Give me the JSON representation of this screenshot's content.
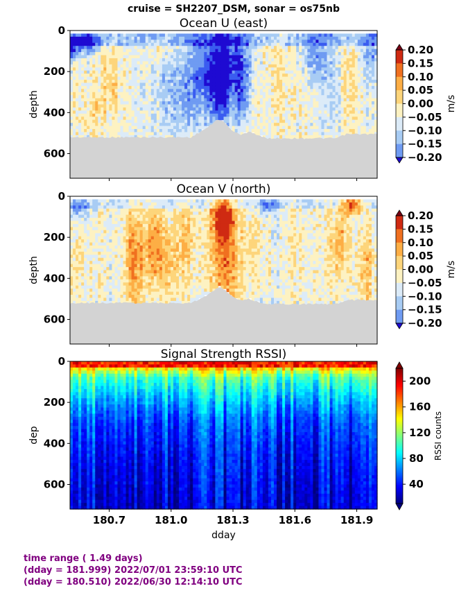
{
  "figure_title": "cruise = SH2207_DSM,  sonar = os75nb",
  "chart_data": [
    {
      "type": "heatmap",
      "title": "Ocean U (east)",
      "ylabel": "depth",
      "xlim": [
        180.51,
        181.999
      ],
      "ylim": [
        720,
        0
      ],
      "y_ticks": [
        0,
        200,
        400,
        600
      ],
      "x_ticks": [
        180.7,
        181.0,
        181.3,
        181.6,
        181.9
      ],
      "show_x_ticklabels": false,
      "colorbar": {
        "label": "m/s",
        "levels": [
          -0.2,
          -0.15,
          -0.1,
          -0.05,
          0.0,
          0.05,
          0.1,
          0.15,
          0.2
        ],
        "tick_labels": [
          "0.20",
          "0.15",
          "0.10",
          "0.05",
          "0.00",
          "−0.05",
          "−0.10",
          "−0.15",
          "−0.20"
        ],
        "colors": [
          "#1e0ad2",
          "#3a5cf0",
          "#6f9bf2",
          "#a8ccf4",
          "#dcebf8",
          "#fdf2c2",
          "#fdd57b",
          "#fdae45",
          "#f07020",
          "#cf2a12",
          "#780014"
        ],
        "extend": "both"
      },
      "mask_color": "#d3d3d3",
      "bottom_depth": [
        [
          180.51,
          520
        ],
        [
          181.1,
          520
        ],
        [
          181.13,
          500
        ],
        [
          181.18,
          470
        ],
        [
          181.23,
          430
        ],
        [
          181.26,
          450
        ],
        [
          181.3,
          490
        ],
        [
          181.34,
          510
        ],
        [
          181.38,
          490
        ],
        [
          181.42,
          510
        ],
        [
          181.46,
          525
        ],
        [
          181.8,
          525
        ],
        [
          181.85,
          505
        ],
        [
          182.0,
          505
        ]
      ],
      "features": [
        {
          "dday": 180.52,
          "depth": 80,
          "value": -0.22,
          "width": 0.04,
          "height": 60
        },
        {
          "dday": 180.6,
          "depth": 60,
          "value": -0.19,
          "width": 0.05,
          "height": 50
        },
        {
          "dday": 180.7,
          "depth": 250,
          "value": 0.06,
          "width": 0.06,
          "height": 180
        },
        {
          "dday": 180.62,
          "depth": 400,
          "value": 0.05,
          "width": 0.05,
          "height": 120
        },
        {
          "dday": 180.95,
          "depth": 80,
          "value": 0.05,
          "width": 0.05,
          "height": 60
        },
        {
          "dday": 181.05,
          "depth": 300,
          "value": -0.1,
          "width": 0.12,
          "height": 220
        },
        {
          "dday": 181.18,
          "depth": 180,
          "value": -0.14,
          "width": 0.08,
          "height": 200
        },
        {
          "dday": 181.24,
          "depth": 250,
          "value": -0.22,
          "width": 0.05,
          "height": 240
        },
        {
          "dday": 181.33,
          "depth": 150,
          "value": -0.19,
          "width": 0.06,
          "height": 140
        },
        {
          "dday": 181.34,
          "depth": 350,
          "value": -0.14,
          "width": 0.04,
          "height": 120
        },
        {
          "dday": 181.52,
          "depth": 200,
          "value": 0.04,
          "width": 0.07,
          "height": 240
        },
        {
          "dday": 181.7,
          "depth": 120,
          "value": -0.11,
          "width": 0.08,
          "height": 120
        },
        {
          "dday": 181.78,
          "depth": 300,
          "value": -0.05,
          "width": 0.07,
          "height": 200
        },
        {
          "dday": 181.86,
          "depth": 260,
          "value": 0.06,
          "width": 0.05,
          "height": 200
        },
        {
          "dday": 181.97,
          "depth": 120,
          "value": -0.1,
          "width": 0.05,
          "height": 130
        }
      ],
      "surface_band": {
        "depth_max": 70,
        "value": -0.13
      }
    },
    {
      "type": "heatmap",
      "title": "Ocean V (north)",
      "ylabel": "depth",
      "xlim": [
        180.51,
        181.999
      ],
      "ylim": [
        720,
        0
      ],
      "y_ticks": [
        0,
        200,
        400,
        600
      ],
      "x_ticks": [
        180.7,
        181.0,
        181.3,
        181.6,
        181.9
      ],
      "show_x_ticklabels": false,
      "colorbar": {
        "label": "m/s",
        "levels": [
          -0.2,
          -0.15,
          -0.1,
          -0.05,
          0.0,
          0.05,
          0.1,
          0.15,
          0.2
        ],
        "tick_labels": [
          "0.20",
          "0.15",
          "0.10",
          "0.05",
          "0.00",
          "−0.05",
          "−0.10",
          "−0.15",
          "−0.20"
        ],
        "colors": [
          "#1e0ad2",
          "#3a5cf0",
          "#6f9bf2",
          "#a8ccf4",
          "#dcebf8",
          "#fdf2c2",
          "#fdd57b",
          "#fdae45",
          "#f07020",
          "#cf2a12",
          "#780014"
        ],
        "extend": "both"
      },
      "mask_color": "#d3d3d3",
      "bottom_depth": [
        [
          180.51,
          520
        ],
        [
          181.1,
          520
        ],
        [
          181.13,
          505
        ],
        [
          181.18,
          480
        ],
        [
          181.23,
          440
        ],
        [
          181.26,
          455
        ],
        [
          181.3,
          490
        ],
        [
          181.34,
          510
        ],
        [
          181.38,
          500
        ],
        [
          181.42,
          515
        ],
        [
          181.46,
          525
        ],
        [
          181.8,
          525
        ],
        [
          181.85,
          505
        ],
        [
          182.0,
          505
        ]
      ],
      "features": [
        {
          "dday": 180.55,
          "depth": 60,
          "value": -0.12,
          "width": 0.05,
          "height": 60
        },
        {
          "dday": 180.58,
          "depth": 300,
          "value": 0.03,
          "width": 0.06,
          "height": 200
        },
        {
          "dday": 180.82,
          "depth": 300,
          "value": 0.14,
          "width": 0.05,
          "height": 250
        },
        {
          "dday": 180.92,
          "depth": 250,
          "value": 0.16,
          "width": 0.05,
          "height": 200
        },
        {
          "dday": 181.0,
          "depth": 320,
          "value": 0.1,
          "width": 0.05,
          "height": 200
        },
        {
          "dday": 181.08,
          "depth": 200,
          "value": 0.08,
          "width": 0.05,
          "height": 180
        },
        {
          "dday": 181.25,
          "depth": 100,
          "value": 0.22,
          "width": 0.05,
          "height": 100
        },
        {
          "dday": 181.26,
          "depth": 300,
          "value": 0.17,
          "width": 0.07,
          "height": 260
        },
        {
          "dday": 181.4,
          "depth": 250,
          "value": 0.06,
          "width": 0.05,
          "height": 200
        },
        {
          "dday": 181.47,
          "depth": 50,
          "value": -0.14,
          "width": 0.04,
          "height": 40
        },
        {
          "dday": 181.6,
          "depth": 250,
          "value": 0.03,
          "width": 0.06,
          "height": 220
        },
        {
          "dday": 181.82,
          "depth": 220,
          "value": 0.1,
          "width": 0.05,
          "height": 180
        },
        {
          "dday": 181.88,
          "depth": 40,
          "value": 0.22,
          "width": 0.05,
          "height": 40
        },
        {
          "dday": 181.94,
          "depth": 350,
          "value": 0.1,
          "width": 0.05,
          "height": 200
        }
      ],
      "surface_band": {
        "depth_max": 60,
        "value": -0.07
      }
    },
    {
      "type": "heatmap",
      "title": "Signal Strength RSSI)",
      "ylabel": "dep",
      "xlabel": "dday",
      "xlim": [
        180.51,
        181.999
      ],
      "ylim": [
        720,
        0
      ],
      "y_ticks": [
        0,
        200,
        400,
        600
      ],
      "x_ticks": [
        180.7,
        181.0,
        181.3,
        181.6,
        181.9
      ],
      "x_tick_labels": [
        "180.7",
        "181.0",
        "181.3",
        "181.6",
        "181.9"
      ],
      "show_x_ticklabels": true,
      "colorbar": {
        "label": "RSSI counts",
        "range": [
          10,
          220
        ],
        "ticks": [
          40,
          80,
          120,
          160,
          200
        ],
        "tick_labels": [
          "40",
          "80",
          "120",
          "160",
          "200"
        ],
        "colormap": "jet",
        "extend": "both"
      },
      "surface_value": 190,
      "profile": [
        [
          20,
          185
        ],
        [
          40,
          140
        ],
        [
          80,
          105
        ],
        [
          150,
          85
        ],
        [
          200,
          72
        ],
        [
          300,
          52
        ],
        [
          450,
          40
        ],
        [
          600,
          33
        ],
        [
          720,
          28
        ]
      ]
    }
  ],
  "time_range": {
    "line1": "time range ( 1.49 days)",
    "line2": "(dday = 181.999) 2022/07/01 23:59:10 UTC",
    "line3": "(dday = 180.510) 2022/06/30 12:14:10 UTC"
  }
}
